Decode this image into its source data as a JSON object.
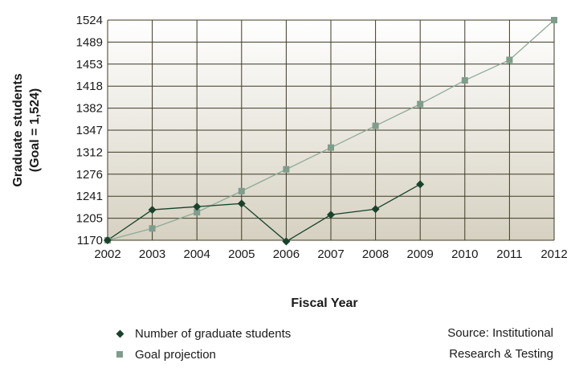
{
  "chart_data": {
    "type": "line",
    "title": "",
    "xlabel": "Fiscal Year",
    "ylabel_line1": "Graduate students",
    "ylabel_line2": "(Goal = 1,524)",
    "x": [
      2002,
      2003,
      2004,
      2005,
      2006,
      2007,
      2008,
      2009,
      2010,
      2011,
      2012
    ],
    "x_ticks": [
      "2002",
      "2003",
      "2004",
      "2005",
      "2006",
      "2007",
      "2008",
      "2009",
      "2010",
      "2011",
      "2012"
    ],
    "y_ticks": [
      "1170",
      "1205",
      "1241",
      "1276",
      "1312",
      "1347",
      "1382",
      "1418",
      "1453",
      "1489",
      "1524"
    ],
    "y_tick_values": [
      1170,
      1205.4,
      1240.8,
      1276.2,
      1311.6,
      1347,
      1382.4,
      1417.8,
      1453.2,
      1488.6,
      1524
    ],
    "ylim": [
      1170,
      1524
    ],
    "grid": true,
    "series": [
      {
        "name": "Number of graduate students",
        "marker": "diamond",
        "color": "#17432a",
        "x": [
          2002,
          2003,
          2004,
          2005,
          2006,
          2007,
          2008,
          2009
        ],
        "values": [
          1170,
          1219,
          1224,
          1229,
          1168,
          1211,
          1220,
          1260
        ]
      },
      {
        "name": "Goal projection",
        "marker": "square",
        "color": "#8faa98",
        "x": [
          2002,
          2003,
          2004,
          2005,
          2006,
          2007,
          2008,
          2009,
          2010,
          2011,
          2012
        ],
        "values": [
          1170,
          1189,
          1215,
          1249,
          1284,
          1319,
          1354,
          1389,
          1427,
          1460,
          1524
        ]
      }
    ],
    "legend_placement": "bottom-left"
  },
  "source": {
    "line1": "Source: Institutional",
    "line2": "Research & Testing"
  }
}
